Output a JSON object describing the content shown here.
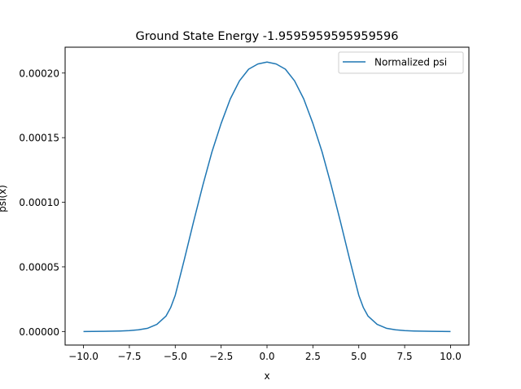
{
  "chart_data": {
    "type": "line",
    "title": "Ground State Energy -1.9595959595959596",
    "xlabel": "x",
    "ylabel": "psi(x)",
    "xlim": [
      -11.0,
      11.0
    ],
    "ylim": [
      -1.05e-05,
      0.00022
    ],
    "x_ticks": [
      -10.0,
      -7.5,
      -5.0,
      -2.5,
      0.0,
      2.5,
      5.0,
      7.5,
      10.0
    ],
    "x_tick_labels": [
      "−10.0",
      "−7.5",
      "−5.0",
      "−2.5",
      "0.0",
      "2.5",
      "5.0",
      "7.5",
      "10.0"
    ],
    "y_ticks": [
      0.0,
      5e-05,
      0.0001,
      0.00015,
      0.0002
    ],
    "y_tick_labels": [
      "0.00000",
      "0.00005",
      "0.00010",
      "0.00015",
      "0.00020"
    ],
    "grid": false,
    "legend_position": "top-right",
    "series": [
      {
        "name": "Normalized psi",
        "color": "#1f77b4",
        "x": [
          -10.0,
          -9.0,
          -8.0,
          -7.5,
          -7.0,
          -6.5,
          -6.0,
          -5.5,
          -5.25,
          -5.0,
          -4.75,
          -4.5,
          -4.0,
          -3.5,
          -3.0,
          -2.5,
          -2.0,
          -1.5,
          -1.0,
          -0.5,
          0.0,
          0.5,
          1.0,
          1.5,
          2.0,
          2.5,
          3.0,
          3.5,
          4.0,
          4.5,
          4.75,
          5.0,
          5.25,
          5.5,
          6.0,
          6.5,
          7.0,
          7.5,
          8.0,
          9.0,
          10.0
        ],
        "y": [
          0.0,
          1e-07,
          4e-07,
          7e-07,
          1.3e-06,
          2.5e-06,
          5.5e-06,
          1.2e-05,
          1.85e-05,
          2.8e-05,
          4.2e-05,
          5.6e-05,
          8.5e-05,
          0.000113,
          0.000139,
          0.000161,
          0.00018,
          0.000194,
          0.000203,
          0.000207,
          0.0002085,
          0.000207,
          0.000203,
          0.000194,
          0.00018,
          0.000161,
          0.000139,
          0.000113,
          8.5e-05,
          5.6e-05,
          4.2e-05,
          2.8e-05,
          1.85e-05,
          1.2e-05,
          5.5e-06,
          2.5e-06,
          1.3e-06,
          7e-07,
          4e-07,
          1e-07,
          0.0
        ]
      }
    ]
  }
}
